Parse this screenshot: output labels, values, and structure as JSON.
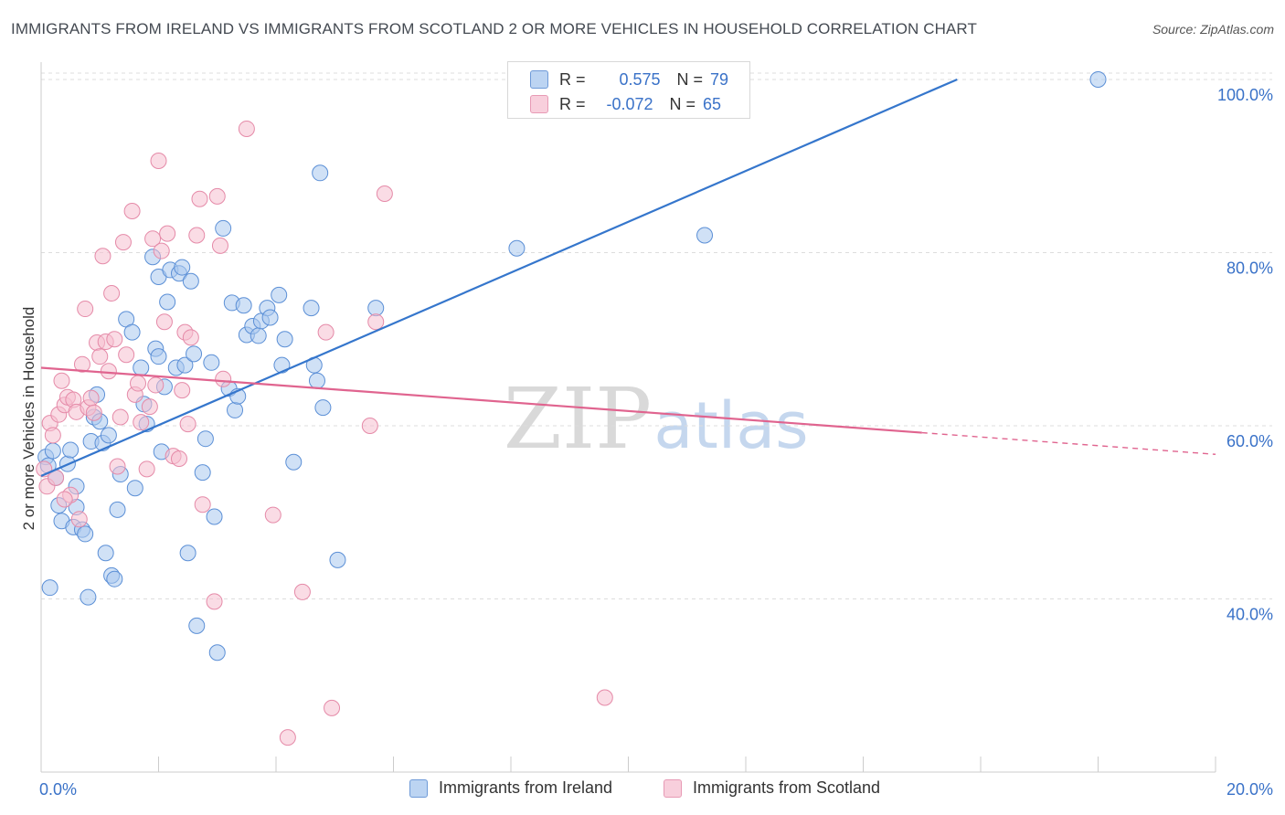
{
  "header": {
    "title": "IMMIGRANTS FROM IRELAND VS IMMIGRANTS FROM SCOTLAND 2 OR MORE VEHICLES IN HOUSEHOLD CORRELATION CHART",
    "source": "Source: ZipAtlas.com"
  },
  "watermark": {
    "zip": "ZIP",
    "atlas": "atlas"
  },
  "colors": {
    "ireland_fill": "#a9c8ef",
    "ireland_stroke": "#5b8fd6",
    "ireland_line": "#3576cc",
    "scotland_fill": "#f6bfd0",
    "scotland_stroke": "#e58aa8",
    "scotland_line": "#e0648f",
    "axis_text": "#3a72c8",
    "grid": "#dddddd"
  },
  "legend_inset": {
    "rows": [
      {
        "r_label": "R =",
        "r_value": "0.575",
        "n_label": "N =",
        "n_value": "79"
      },
      {
        "r_label": "R =",
        "r_value": "-0.072",
        "n_label": "N =",
        "n_value": "65"
      }
    ]
  },
  "legend_bottom": {
    "items": [
      "Immigrants from Ireland",
      "Immigrants from Scotland"
    ]
  },
  "chart_data": {
    "type": "scatter",
    "title": "IMMIGRANTS FROM IRELAND VS IMMIGRANTS FROM SCOTLAND 2 OR MORE VEHICLES IN HOUSEHOLD CORRELATION CHART",
    "xlabel": "",
    "ylabel": "2 or more Vehicles in Household",
    "xlim": [
      0,
      20
    ],
    "ylim": [
      20,
      102
    ],
    "x_ticks": [
      "0.0%",
      "20.0%"
    ],
    "y_ticks": [
      "40.0%",
      "60.0%",
      "80.0%",
      "100.0%"
    ],
    "y_tick_values": [
      40,
      60,
      80,
      100
    ],
    "grid": true,
    "legend_placement": "bottom",
    "series": [
      {
        "name": "Immigrants from Ireland",
        "r": 0.575,
        "n": 79,
        "trend": {
          "x0": 0,
          "y0": 54.2,
          "x1": 15.6,
          "y1": 100
        },
        "points": [
          [
            0.08,
            56.4
          ],
          [
            0.12,
            55.4
          ],
          [
            0.2,
            57.1
          ],
          [
            0.25,
            54.0
          ],
          [
            0.15,
            41.3
          ],
          [
            0.3,
            50.8
          ],
          [
            0.35,
            49.0
          ],
          [
            0.45,
            55.6
          ],
          [
            0.5,
            57.2
          ],
          [
            0.55,
            48.3
          ],
          [
            0.6,
            50.6
          ],
          [
            0.7,
            48.0
          ],
          [
            0.75,
            47.5
          ],
          [
            0.8,
            40.2
          ],
          [
            0.85,
            58.2
          ],
          [
            0.9,
            61.0
          ],
          [
            0.95,
            63.6
          ],
          [
            1.05,
            58.0
          ],
          [
            1.1,
            45.3
          ],
          [
            1.15,
            58.9
          ],
          [
            1.2,
            42.7
          ],
          [
            1.25,
            42.3
          ],
          [
            1.3,
            50.3
          ],
          [
            1.35,
            54.4
          ],
          [
            1.45,
            72.3
          ],
          [
            1.55,
            70.8
          ],
          [
            1.6,
            52.8
          ],
          [
            1.7,
            66.7
          ],
          [
            1.75,
            62.5
          ],
          [
            1.8,
            60.2
          ],
          [
            1.9,
            79.5
          ],
          [
            1.95,
            68.9
          ],
          [
            2.0,
            77.2
          ],
          [
            2.05,
            57.0
          ],
          [
            2.1,
            64.5
          ],
          [
            2.15,
            74.3
          ],
          [
            2.2,
            78.0
          ],
          [
            2.3,
            66.7
          ],
          [
            2.35,
            77.6
          ],
          [
            2.4,
            78.3
          ],
          [
            2.45,
            67.0
          ],
          [
            2.5,
            45.3
          ],
          [
            2.55,
            76.7
          ],
          [
            2.6,
            68.3
          ],
          [
            2.65,
            36.9
          ],
          [
            2.75,
            54.6
          ],
          [
            2.8,
            58.5
          ],
          [
            2.9,
            67.3
          ],
          [
            2.95,
            49.5
          ],
          [
            3.0,
            33.8
          ],
          [
            3.1,
            82.8
          ],
          [
            3.2,
            64.3
          ],
          [
            3.25,
            74.2
          ],
          [
            3.3,
            61.8
          ],
          [
            3.35,
            63.4
          ],
          [
            3.45,
            73.9
          ],
          [
            3.5,
            70.5
          ],
          [
            3.6,
            71.5
          ],
          [
            3.7,
            70.4
          ],
          [
            3.75,
            72.1
          ],
          [
            3.85,
            73.6
          ],
          [
            4.05,
            75.1
          ],
          [
            4.1,
            67.0
          ],
          [
            4.15,
            70.0
          ],
          [
            4.3,
            55.8
          ],
          [
            4.6,
            73.6
          ],
          [
            4.65,
            67.0
          ],
          [
            4.7,
            65.2
          ],
          [
            4.75,
            89.2
          ],
          [
            4.8,
            62.1
          ],
          [
            5.05,
            44.5
          ],
          [
            5.7,
            73.6
          ],
          [
            8.1,
            80.5
          ],
          [
            11.3,
            82.0
          ],
          [
            18.0,
            100.0
          ],
          [
            0.6,
            53.0
          ],
          [
            1.0,
            60.5
          ],
          [
            3.9,
            72.5
          ],
          [
            2.0,
            68.0
          ]
        ]
      },
      {
        "name": "Immigrants from Scotland",
        "r": -0.072,
        "n": 65,
        "trend": {
          "x0": 0,
          "y0": 66.7,
          "x1": 15.0,
          "y1": 59.2,
          "dash_x1": 20.0,
          "dash_y1": 56.7
        },
        "points": [
          [
            0.05,
            55.0
          ],
          [
            0.1,
            53.0
          ],
          [
            0.15,
            60.3
          ],
          [
            0.2,
            58.9
          ],
          [
            0.25,
            54.0
          ],
          [
            0.3,
            61.3
          ],
          [
            0.35,
            65.2
          ],
          [
            0.4,
            62.4
          ],
          [
            0.45,
            63.3
          ],
          [
            0.5,
            52.0
          ],
          [
            0.55,
            63.0
          ],
          [
            0.6,
            61.6
          ],
          [
            0.65,
            49.2
          ],
          [
            0.7,
            67.1
          ],
          [
            0.75,
            73.5
          ],
          [
            0.8,
            62.1
          ],
          [
            0.85,
            63.2
          ],
          [
            0.9,
            61.5
          ],
          [
            0.95,
            69.6
          ],
          [
            1.0,
            68.0
          ],
          [
            1.05,
            79.6
          ],
          [
            1.1,
            69.7
          ],
          [
            1.15,
            66.3
          ],
          [
            1.2,
            75.3
          ],
          [
            1.25,
            70.0
          ],
          [
            1.3,
            55.3
          ],
          [
            1.35,
            61.0
          ],
          [
            1.4,
            81.2
          ],
          [
            1.45,
            68.2
          ],
          [
            1.55,
            84.8
          ],
          [
            1.6,
            63.6
          ],
          [
            1.65,
            64.9
          ],
          [
            1.7,
            60.4
          ],
          [
            1.8,
            55.0
          ],
          [
            1.85,
            62.2
          ],
          [
            1.9,
            81.6
          ],
          [
            1.95,
            64.7
          ],
          [
            2.0,
            90.6
          ],
          [
            2.05,
            80.2
          ],
          [
            2.1,
            72.0
          ],
          [
            2.15,
            82.2
          ],
          [
            2.25,
            56.5
          ],
          [
            2.35,
            56.2
          ],
          [
            2.4,
            64.1
          ],
          [
            2.45,
            70.8
          ],
          [
            2.5,
            60.2
          ],
          [
            2.55,
            70.2
          ],
          [
            2.65,
            82.0
          ],
          [
            2.7,
            86.2
          ],
          [
            2.75,
            50.9
          ],
          [
            2.95,
            39.7
          ],
          [
            3.0,
            86.5
          ],
          [
            3.05,
            80.8
          ],
          [
            3.1,
            65.4
          ],
          [
            3.5,
            94.3
          ],
          [
            3.95,
            49.7
          ],
          [
            4.2,
            24.0
          ],
          [
            4.45,
            40.8
          ],
          [
            4.95,
            27.4
          ],
          [
            4.85,
            70.8
          ],
          [
            5.6,
            60.0
          ],
          [
            5.7,
            72.0
          ],
          [
            5.85,
            86.8
          ],
          [
            9.6,
            28.6
          ],
          [
            0.4,
            51.5
          ]
        ]
      }
    ]
  }
}
